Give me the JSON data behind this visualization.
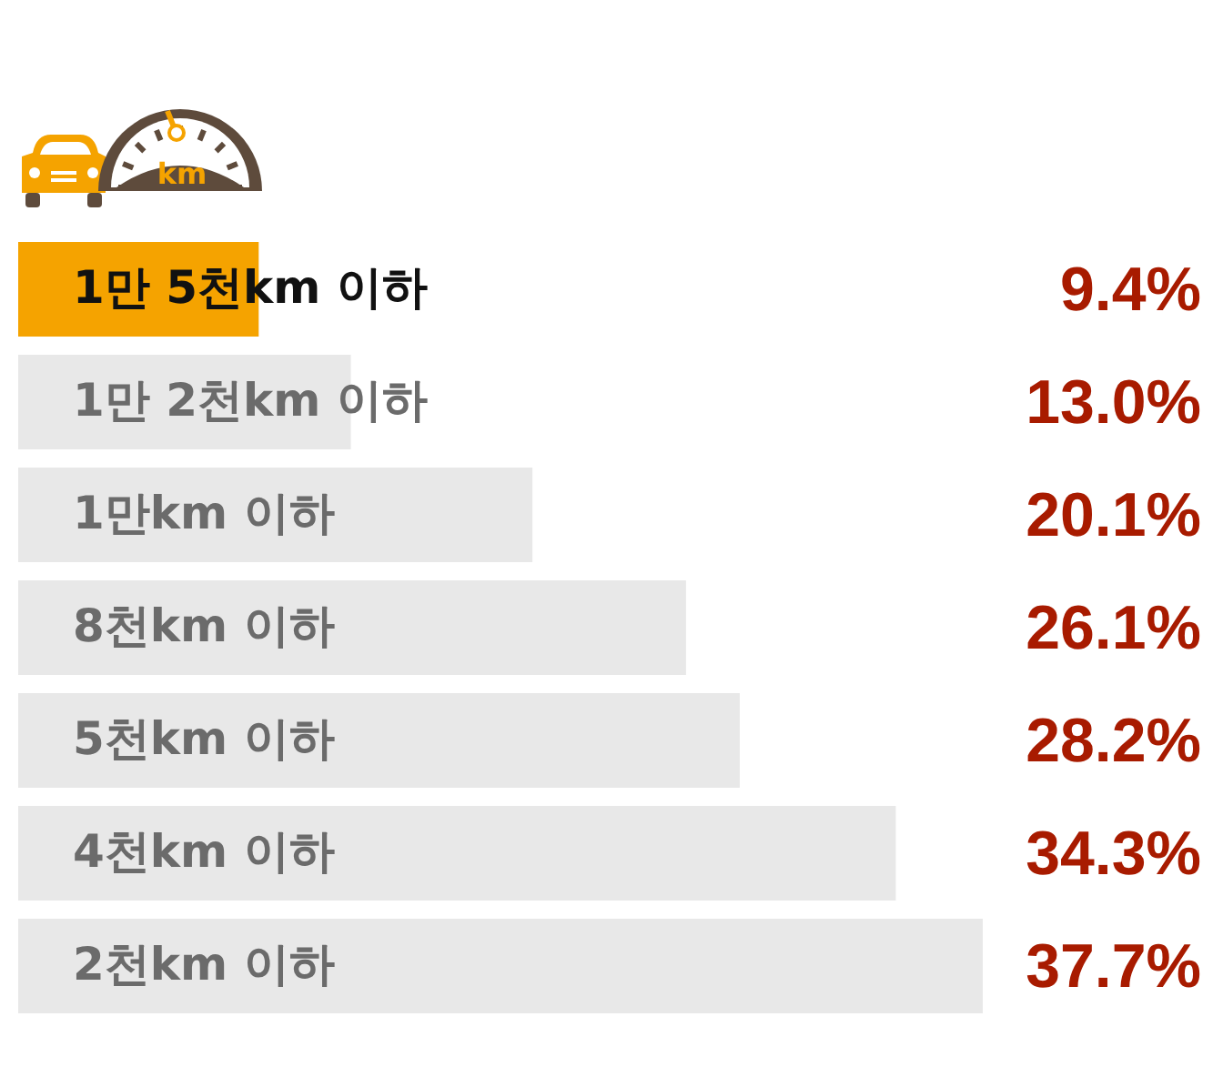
{
  "chart_data": {
    "type": "bar",
    "orientation": "horizontal",
    "categories": [
      "1만 5천km 이하",
      "1만 2천km 이하",
      "1만km 이하",
      "8천km 이하",
      "5천km 이하",
      "4천km 이하",
      "2천km 이하"
    ],
    "values": [
      9.4,
      13.0,
      20.1,
      26.1,
      28.2,
      34.3,
      37.7
    ],
    "colors": [
      "#f5a300",
      "#e8e8e8",
      "#e8e8e8",
      "#e8e8e8",
      "#e8e8e8",
      "#e8e8e8",
      "#e8e8e8"
    ],
    "value_labels": [
      "9.4%",
      "13.0%",
      "20.1%",
      "26.1%",
      "28.2%",
      "34.3%",
      "37.7%"
    ],
    "annotations": [
      "km"
    ],
    "legend": false,
    "tick_labels": false
  }
}
